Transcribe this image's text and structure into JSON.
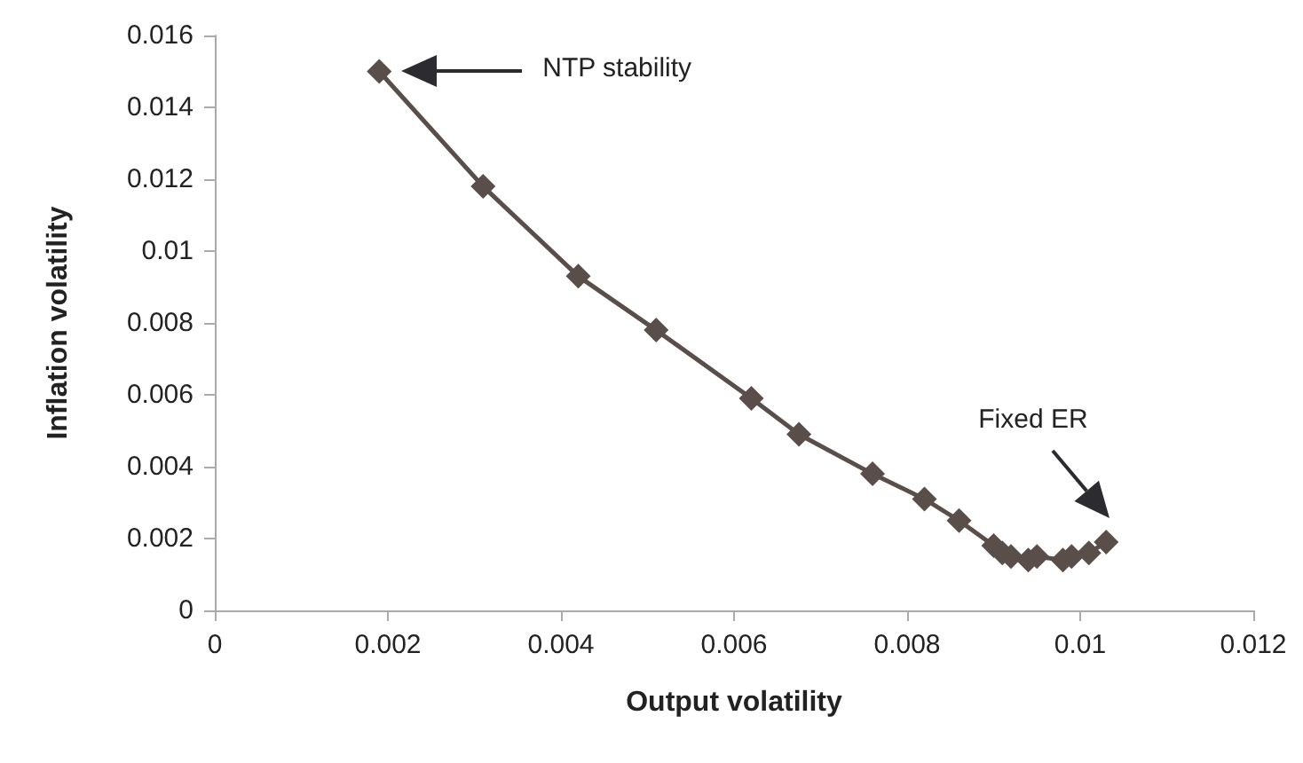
{
  "chart_data": {
    "type": "line",
    "xlabel": "Output volatility",
    "ylabel": "Inflation volatility",
    "x": [
      0.0019,
      0.0031,
      0.0042,
      0.0051,
      0.0062,
      0.00675,
      0.0076,
      0.0082,
      0.0086,
      0.009,
      0.0091,
      0.0092,
      0.0094,
      0.0095,
      0.0098,
      0.0099,
      0.0101,
      0.0103
    ],
    "series": [
      {
        "color": "#594e49",
        "values": [
          0.015,
          0.0118,
          0.0093,
          0.0078,
          0.0059,
          0.0049,
          0.0038,
          0.0031,
          0.0025,
          0.0018,
          0.0016,
          0.0015,
          0.0014,
          0.0015,
          0.0014,
          0.0015,
          0.0016,
          0.0019
        ]
      }
    ],
    "xlim": [
      0,
      0.012
    ],
    "xticks": [
      0,
      0.002,
      0.004,
      0.006,
      0.008,
      0.01,
      0.012
    ],
    "ylim": [
      0,
      0.016
    ],
    "yticks": [
      0,
      0.002,
      0.004,
      0.006,
      0.008,
      0.01,
      0.012,
      0.014,
      0.016
    ],
    "grid": false,
    "marker": "diamond",
    "line_style": "solid",
    "annotations": [
      "NTP stability",
      "Fixed ER"
    ]
  }
}
